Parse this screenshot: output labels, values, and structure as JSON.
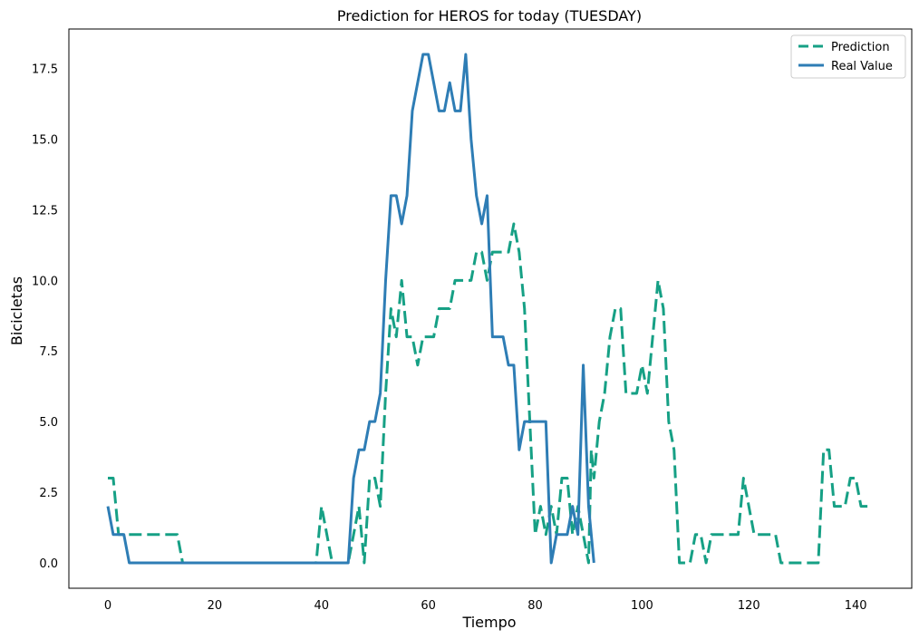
{
  "chart_data": {
    "type": "line",
    "title": "Prediction for HEROS for today (TUESDAY)",
    "xlabel": "Tiempo",
    "ylabel": "Bicicletas",
    "xlim": [
      -7.3,
      150.5
    ],
    "ylim": [
      -0.9,
      18.9
    ],
    "xticks": [
      0,
      20,
      40,
      60,
      80,
      100,
      120,
      140
    ],
    "yticks": [
      0.0,
      2.5,
      5.0,
      7.5,
      10.0,
      12.5,
      15.0,
      17.5
    ],
    "xtick_labels": [
      "0",
      "20",
      "40",
      "60",
      "80",
      "100",
      "120",
      "140"
    ],
    "ytick_labels": [
      "0.0",
      "2.5",
      "5.0",
      "7.5",
      "10.0",
      "12.5",
      "15.0",
      "17.5"
    ],
    "grid": false,
    "legend_position": "top-right",
    "series": [
      {
        "name": "Prediction",
        "color": "#16a085",
        "style": "dashed",
        "points": [
          [
            0,
            3
          ],
          [
            1,
            3
          ],
          [
            2,
            1
          ],
          [
            3,
            1
          ],
          [
            4,
            1
          ],
          [
            5,
            1
          ],
          [
            6,
            1
          ],
          [
            7,
            1
          ],
          [
            8,
            1
          ],
          [
            9,
            1
          ],
          [
            10,
            1
          ],
          [
            11,
            1
          ],
          [
            12,
            1
          ],
          [
            13,
            1
          ],
          [
            14,
            0
          ],
          [
            15,
            0
          ],
          [
            16,
            0
          ],
          [
            17,
            0
          ],
          [
            18,
            0
          ],
          [
            19,
            0
          ],
          [
            20,
            0
          ],
          [
            21,
            0
          ],
          [
            22,
            0
          ],
          [
            23,
            0
          ],
          [
            24,
            0
          ],
          [
            25,
            0
          ],
          [
            26,
            0
          ],
          [
            27,
            0
          ],
          [
            28,
            0
          ],
          [
            29,
            0
          ],
          [
            30,
            0
          ],
          [
            31,
            0
          ],
          [
            32,
            0
          ],
          [
            33,
            0
          ],
          [
            34,
            0
          ],
          [
            35,
            0
          ],
          [
            36,
            0
          ],
          [
            37,
            0
          ],
          [
            38,
            0
          ],
          [
            39,
            0
          ],
          [
            40,
            2
          ],
          [
            41,
            1
          ],
          [
            42,
            0
          ],
          [
            43,
            0
          ],
          [
            44,
            0
          ],
          [
            45,
            0
          ],
          [
            46,
            1
          ],
          [
            47,
            2
          ],
          [
            48,
            0
          ],
          [
            49,
            3
          ],
          [
            50,
            3
          ],
          [
            51,
            2
          ],
          [
            52,
            6
          ],
          [
            53,
            9
          ],
          [
            54,
            8
          ],
          [
            55,
            10
          ],
          [
            56,
            8
          ],
          [
            57,
            8
          ],
          [
            58,
            7
          ],
          [
            59,
            8
          ],
          [
            60,
            8
          ],
          [
            61,
            8
          ],
          [
            62,
            9
          ],
          [
            63,
            9
          ],
          [
            64,
            9
          ],
          [
            65,
            10
          ],
          [
            66,
            10
          ],
          [
            67,
            10
          ],
          [
            68,
            10
          ],
          [
            69,
            11
          ],
          [
            70,
            11
          ],
          [
            71,
            10
          ],
          [
            72,
            11
          ],
          [
            73,
            11
          ],
          [
            74,
            11
          ],
          [
            75,
            11
          ],
          [
            76,
            12
          ],
          [
            77,
            11
          ],
          [
            78,
            9
          ],
          [
            79,
            5
          ],
          [
            80,
            1
          ],
          [
            81,
            2
          ],
          [
            82,
            1
          ],
          [
            83,
            2
          ],
          [
            84,
            1
          ],
          [
            85,
            3
          ],
          [
            86,
            3
          ],
          [
            87,
            1
          ],
          [
            88,
            2
          ],
          [
            89,
            1
          ],
          [
            90,
            0
          ],
          [
            90.5,
            4
          ],
          [
            91,
            3
          ],
          [
            92,
            5
          ],
          [
            93,
            6
          ],
          [
            94,
            8
          ],
          [
            95,
            9
          ],
          [
            96,
            9
          ],
          [
            97,
            6
          ],
          [
            98,
            6
          ],
          [
            99,
            6
          ],
          [
            100,
            7
          ],
          [
            101,
            6
          ],
          [
            102,
            8
          ],
          [
            103,
            10
          ],
          [
            104,
            9
          ],
          [
            105,
            5
          ],
          [
            106,
            4
          ],
          [
            107,
            0
          ],
          [
            108,
            0
          ],
          [
            109,
            0
          ],
          [
            110,
            1
          ],
          [
            111,
            1
          ],
          [
            112,
            0
          ],
          [
            113,
            1
          ],
          [
            114,
            1
          ],
          [
            115,
            1
          ],
          [
            116,
            1
          ],
          [
            117,
            1
          ],
          [
            118,
            1
          ],
          [
            119,
            3
          ],
          [
            120,
            2
          ],
          [
            121,
            1
          ],
          [
            122,
            1
          ],
          [
            123,
            1
          ],
          [
            124,
            1
          ],
          [
            125,
            1
          ],
          [
            126,
            0
          ],
          [
            127,
            0
          ],
          [
            128,
            0
          ],
          [
            129,
            0
          ],
          [
            130,
            0
          ],
          [
            131,
            0
          ],
          [
            132,
            0
          ],
          [
            133,
            0
          ],
          [
            134,
            4
          ],
          [
            135,
            4
          ],
          [
            136,
            2
          ],
          [
            137,
            2
          ],
          [
            138,
            2
          ],
          [
            139,
            3
          ],
          [
            140,
            3
          ],
          [
            141,
            2
          ],
          [
            142,
            2
          ],
          [
            143,
            2
          ]
        ]
      },
      {
        "name": "Real Value",
        "color": "#2e7db5",
        "style": "solid",
        "points": [
          [
            0,
            2
          ],
          [
            1,
            1
          ],
          [
            2,
            1
          ],
          [
            3,
            1
          ],
          [
            4,
            0
          ],
          [
            5,
            0
          ],
          [
            6,
            0
          ],
          [
            7,
            0
          ],
          [
            8,
            0
          ],
          [
            9,
            0
          ],
          [
            10,
            0
          ],
          [
            11,
            0
          ],
          [
            12,
            0
          ],
          [
            13,
            0
          ],
          [
            14,
            0
          ],
          [
            15,
            0
          ],
          [
            16,
            0
          ],
          [
            17,
            0
          ],
          [
            18,
            0
          ],
          [
            19,
            0
          ],
          [
            20,
            0
          ],
          [
            21,
            0
          ],
          [
            22,
            0
          ],
          [
            23,
            0
          ],
          [
            24,
            0
          ],
          [
            25,
            0
          ],
          [
            26,
            0
          ],
          [
            27,
            0
          ],
          [
            28,
            0
          ],
          [
            29,
            0
          ],
          [
            30,
            0
          ],
          [
            31,
            0
          ],
          [
            32,
            0
          ],
          [
            33,
            0
          ],
          [
            34,
            0
          ],
          [
            35,
            0
          ],
          [
            36,
            0
          ],
          [
            37,
            0
          ],
          [
            38,
            0
          ],
          [
            39,
            0
          ],
          [
            40,
            0
          ],
          [
            41,
            0
          ],
          [
            42,
            0
          ],
          [
            43,
            0
          ],
          [
            44,
            0
          ],
          [
            45,
            0
          ],
          [
            46,
            3
          ],
          [
            47,
            4
          ],
          [
            48,
            4
          ],
          [
            49,
            5
          ],
          [
            50,
            5
          ],
          [
            51,
            6
          ],
          [
            52,
            10
          ],
          [
            53,
            13
          ],
          [
            54,
            13
          ],
          [
            55,
            12
          ],
          [
            56,
            13
          ],
          [
            57,
            16
          ],
          [
            58,
            17
          ],
          [
            59,
            18
          ],
          [
            60,
            18
          ],
          [
            61,
            17
          ],
          [
            62,
            16
          ],
          [
            63,
            16
          ],
          [
            64,
            17
          ],
          [
            65,
            16
          ],
          [
            66,
            16
          ],
          [
            67,
            18
          ],
          [
            68,
            15
          ],
          [
            69,
            13
          ],
          [
            70,
            12
          ],
          [
            71,
            13
          ],
          [
            72,
            8
          ],
          [
            73,
            8
          ],
          [
            74,
            8
          ],
          [
            75,
            7
          ],
          [
            76,
            7
          ],
          [
            77,
            4
          ],
          [
            78,
            5
          ],
          [
            79,
            5
          ],
          [
            80,
            5
          ],
          [
            81,
            5
          ],
          [
            82,
            5
          ],
          [
            83,
            0
          ],
          [
            84,
            1
          ],
          [
            85,
            1
          ],
          [
            86,
            1
          ],
          [
            87,
            2
          ],
          [
            88,
            1
          ],
          [
            89,
            7
          ],
          [
            90,
            2
          ],
          [
            91,
            0
          ]
        ]
      }
    ]
  }
}
